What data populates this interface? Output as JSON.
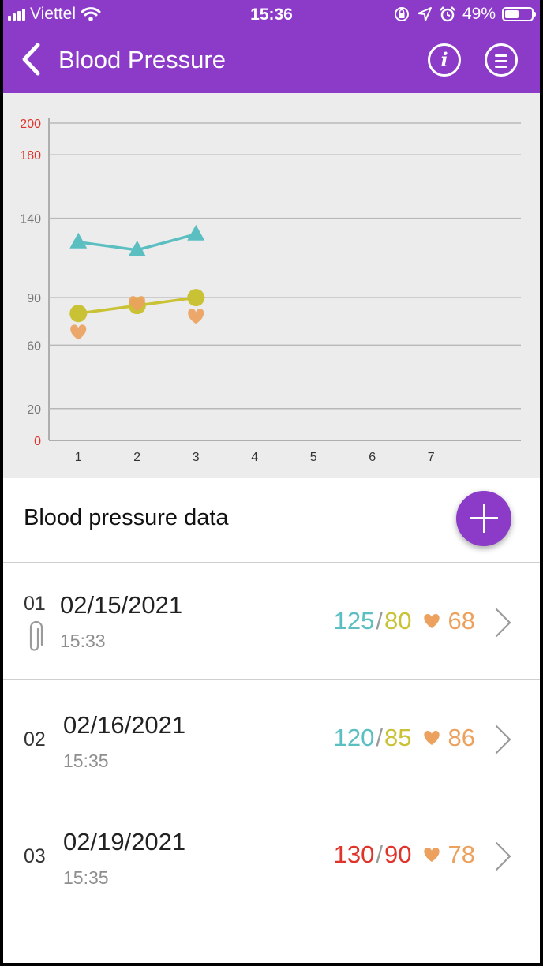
{
  "status_bar": {
    "carrier": "Viettel",
    "time": "15:36",
    "battery": "49%"
  },
  "header": {
    "title": "Blood Pressure",
    "info_label": "i"
  },
  "chart_data": {
    "type": "line",
    "x": [
      1,
      2,
      3,
      4,
      5,
      6,
      7
    ],
    "x_tick_labels": [
      "1",
      "2",
      "3",
      "4",
      "5",
      "6",
      "7"
    ],
    "y_tick_labels": [
      "200",
      "180",
      "140",
      "90",
      "60",
      "20",
      "0"
    ],
    "ylim": [
      0,
      200
    ],
    "grid": true,
    "series": [
      {
        "marker": "triangle",
        "color": "#5bbfc2",
        "points": [
          [
            1,
            125
          ],
          [
            2,
            120
          ],
          [
            3,
            130
          ]
        ]
      },
      {
        "marker": "circle",
        "color": "#c9c234",
        "points": [
          [
            1,
            80
          ],
          [
            2,
            85
          ],
          [
            3,
            90
          ]
        ]
      },
      {
        "marker": "heart",
        "color": "#eca25e",
        "points": [
          [
            1,
            68
          ],
          [
            2,
            86
          ],
          [
            3,
            78
          ]
        ]
      }
    ],
    "colors": {
      "tick_red": "#e0342a",
      "tick_gray": "#777777",
      "grid": "#b8b8b8"
    }
  },
  "section": {
    "title": "Blood pressure data"
  },
  "colors": {
    "systolic": "#5bbfc2",
    "diastolic": "#c9c234",
    "pulse": "#eca25e",
    "high": "#e0342a",
    "accent": "#8b3bc8"
  },
  "records": [
    {
      "index": "01",
      "date": "02/15/2021",
      "time": "15:33",
      "systolic": "125",
      "diastolic": "80",
      "pulse": "68",
      "high": false,
      "attachment": true
    },
    {
      "index": "02",
      "date": "02/16/2021",
      "time": "15:35",
      "systolic": "120",
      "diastolic": "85",
      "pulse": "86",
      "high": false,
      "attachment": false
    },
    {
      "index": "03",
      "date": "02/19/2021",
      "time": "15:35",
      "systolic": "130",
      "diastolic": "90",
      "pulse": "78",
      "high": true,
      "attachment": false
    }
  ]
}
